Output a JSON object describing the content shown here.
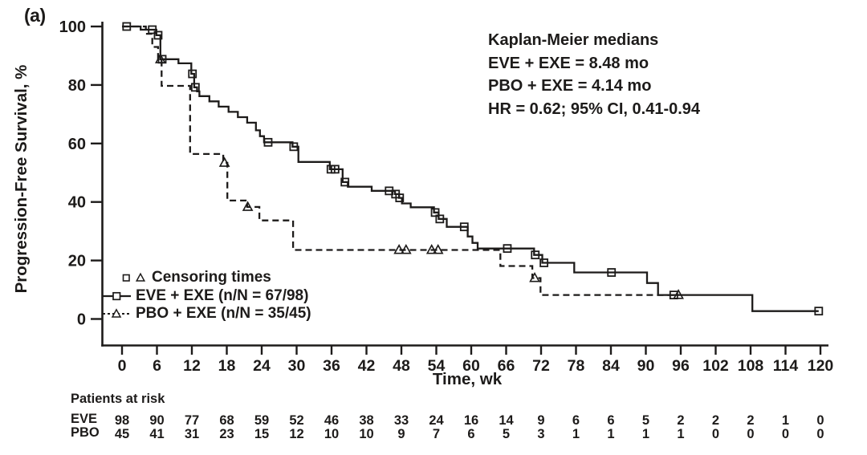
{
  "panel_label": "(a)",
  "annotation": {
    "title": "Kaplan-Meier medians",
    "eve_median": "EVE + EXE = 8.48 mo",
    "pbo_median": "PBO + EXE = 4.14 mo",
    "hazard_ratio": "HR = 0.62; 95% CI, 0.41-0.94"
  },
  "legend": {
    "censoring": "Censoring times",
    "eve": "EVE + EXE (n/N = 67/98)",
    "pbo": "PBO + EXE (n/N = 35/45)"
  },
  "colors": {
    "ink": "#1d1b1a",
    "background": "#ffffff"
  },
  "chart_data": {
    "type": "line",
    "subtype": "kaplan-meier-step",
    "title": "",
    "xlabel": "Time, wk",
    "ylabel": "Progression-Free Survival, %",
    "xlim": [
      0,
      120
    ],
    "ylim": [
      0,
      100
    ],
    "grid": false,
    "legend_position": "lower-left",
    "x_ticks": [
      0,
      6,
      12,
      18,
      24,
      30,
      36,
      42,
      48,
      54,
      60,
      66,
      72,
      78,
      84,
      90,
      96,
      102,
      108,
      114,
      120
    ],
    "y_ticks": [
      0,
      20,
      40,
      60,
      80,
      100
    ],
    "hazard_ratio": {
      "hr": 0.62,
      "ci_level": "95%",
      "ci": "0.41-0.94"
    },
    "series": [
      {
        "name": "EVE + EXE",
        "events_n_N": "67/98",
        "median_mo": 8.48,
        "line": "solid",
        "marker": "square",
        "steps": [
          [
            0,
            100
          ],
          [
            3.2,
            98.9
          ],
          [
            5.9,
            97
          ],
          [
            6.6,
            88.8
          ],
          [
            9.7,
            87.4
          ],
          [
            11.9,
            83.8
          ],
          [
            12.4,
            79.2
          ],
          [
            12.9,
            77.8
          ],
          [
            13.3,
            76.2
          ],
          [
            15,
            74.4
          ],
          [
            16.6,
            72.6
          ],
          [
            18.3,
            70.8
          ],
          [
            19.9,
            69
          ],
          [
            21.5,
            67.1
          ],
          [
            23,
            64.5
          ],
          [
            23.7,
            62.5
          ],
          [
            24.4,
            60.4
          ],
          [
            29.3,
            58.9
          ],
          [
            30.3,
            53.7
          ],
          [
            35.7,
            51.2
          ],
          [
            37.9,
            46.8
          ],
          [
            38.8,
            45.2
          ],
          [
            42.9,
            43.8
          ],
          [
            46.9,
            42.7
          ],
          [
            47.6,
            41.4
          ],
          [
            48.1,
            39.5
          ],
          [
            49.6,
            38.2
          ],
          [
            53.6,
            36.4
          ],
          [
            54.4,
            34.2
          ],
          [
            55.8,
            31.5
          ],
          [
            59.4,
            28.2
          ],
          [
            60.2,
            26
          ],
          [
            61.1,
            24.1
          ],
          [
            70.8,
            21.9
          ],
          [
            72.2,
            19.2
          ],
          [
            77.7,
            15.9
          ],
          [
            90.2,
            12.3
          ],
          [
            92.1,
            8.2
          ],
          [
            108.3,
            2.7
          ]
        ],
        "end_t": 119.7,
        "censor_times": [
          [
            0.8,
            100
          ],
          [
            5.2,
            98.9
          ],
          [
            6.2,
            97
          ],
          [
            6.9,
            88.8
          ],
          [
            12.1,
            83.8
          ],
          [
            12.6,
            79.2
          ],
          [
            25.1,
            60.4
          ],
          [
            29.5,
            58.9
          ],
          [
            35.9,
            51.2
          ],
          [
            36.6,
            51.2
          ],
          [
            38.3,
            46.8
          ],
          [
            45.9,
            43.8
          ],
          [
            47,
            42.7
          ],
          [
            47.7,
            41.4
          ],
          [
            53.8,
            36.4
          ],
          [
            54.6,
            34.2
          ],
          [
            58.8,
            31.5
          ],
          [
            66.2,
            24.1
          ],
          [
            71,
            21.9
          ],
          [
            72.5,
            19.2
          ],
          [
            84.1,
            15.9
          ],
          [
            94.8,
            8.2
          ],
          [
            119.7,
            2.7
          ]
        ]
      },
      {
        "name": "PBO + EXE",
        "events_n_N": "35/45",
        "median_mo": 4.14,
        "line": "dashed",
        "marker": "triangle",
        "steps": [
          [
            0,
            100
          ],
          [
            4.1,
            97.5
          ],
          [
            5.2,
            93
          ],
          [
            6.2,
            88.8
          ],
          [
            6.8,
            79.7
          ],
          [
            11.7,
            56.4
          ],
          [
            17.4,
            53.4
          ],
          [
            18.1,
            40.5
          ],
          [
            21.5,
            38.3
          ],
          [
            23.6,
            33.7
          ],
          [
            29.4,
            23.6
          ],
          [
            65,
            18.1
          ],
          [
            70.5,
            14
          ],
          [
            71.9,
            8.2
          ]
        ],
        "end_t": 95.6,
        "censor_times": [
          [
            6.6,
            88.8
          ],
          [
            17.6,
            53.4
          ],
          [
            21.6,
            38.3
          ],
          [
            47.6,
            23.6
          ],
          [
            48.8,
            23.6
          ],
          [
            53.2,
            23.6
          ],
          [
            54.3,
            23.6
          ],
          [
            70.9,
            14
          ],
          [
            95.6,
            8.2
          ]
        ]
      }
    ],
    "at_risk": {
      "title": "Patients at risk",
      "times": [
        0,
        6,
        12,
        18,
        24,
        30,
        36,
        42,
        48,
        54,
        60,
        66,
        72,
        78,
        84,
        90,
        96,
        102,
        108,
        114,
        120
      ],
      "rows": [
        {
          "label": "EVE",
          "counts": [
            98,
            90,
            77,
            68,
            59,
            52,
            46,
            38,
            33,
            24,
            16,
            14,
            9,
            6,
            6,
            5,
            2,
            2,
            2,
            1,
            0
          ]
        },
        {
          "label": "PBO",
          "counts": [
            45,
            41,
            31,
            23,
            15,
            12,
            10,
            10,
            9,
            7,
            6,
            5,
            3,
            1,
            1,
            1,
            1,
            0,
            0,
            0,
            0
          ]
        }
      ]
    }
  }
}
